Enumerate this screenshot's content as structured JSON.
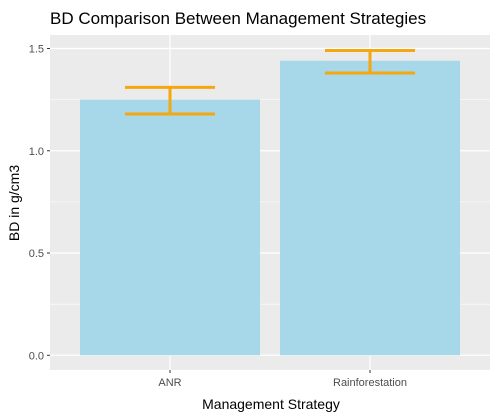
{
  "chart_data": {
    "type": "bar",
    "title": "BD Comparison Between Management Strategies",
    "xlabel": "Management Strategy",
    "ylabel": "BD in g/cm3",
    "categories": [
      "ANR",
      "Rainforestation"
    ],
    "values": [
      1.25,
      1.44
    ],
    "error_bars": [
      {
        "category": "ANR",
        "lower": 1.18,
        "upper": 1.31
      },
      {
        "category": "Rainforestation",
        "lower": 1.38,
        "upper": 1.49
      }
    ],
    "yticks": [
      0.0,
      0.5,
      1.0,
      1.5
    ],
    "ytick_labels": [
      "0.0",
      "0.5",
      "1.0",
      "1.5"
    ],
    "ylim": [
      -0.072,
      1.566
    ],
    "grid": true,
    "legend": "none",
    "colors": {
      "bar": "#a6d8ea",
      "error_bar": "#f5a70f",
      "panel_background": "#ebebeb",
      "grid": "#ffffff"
    }
  }
}
